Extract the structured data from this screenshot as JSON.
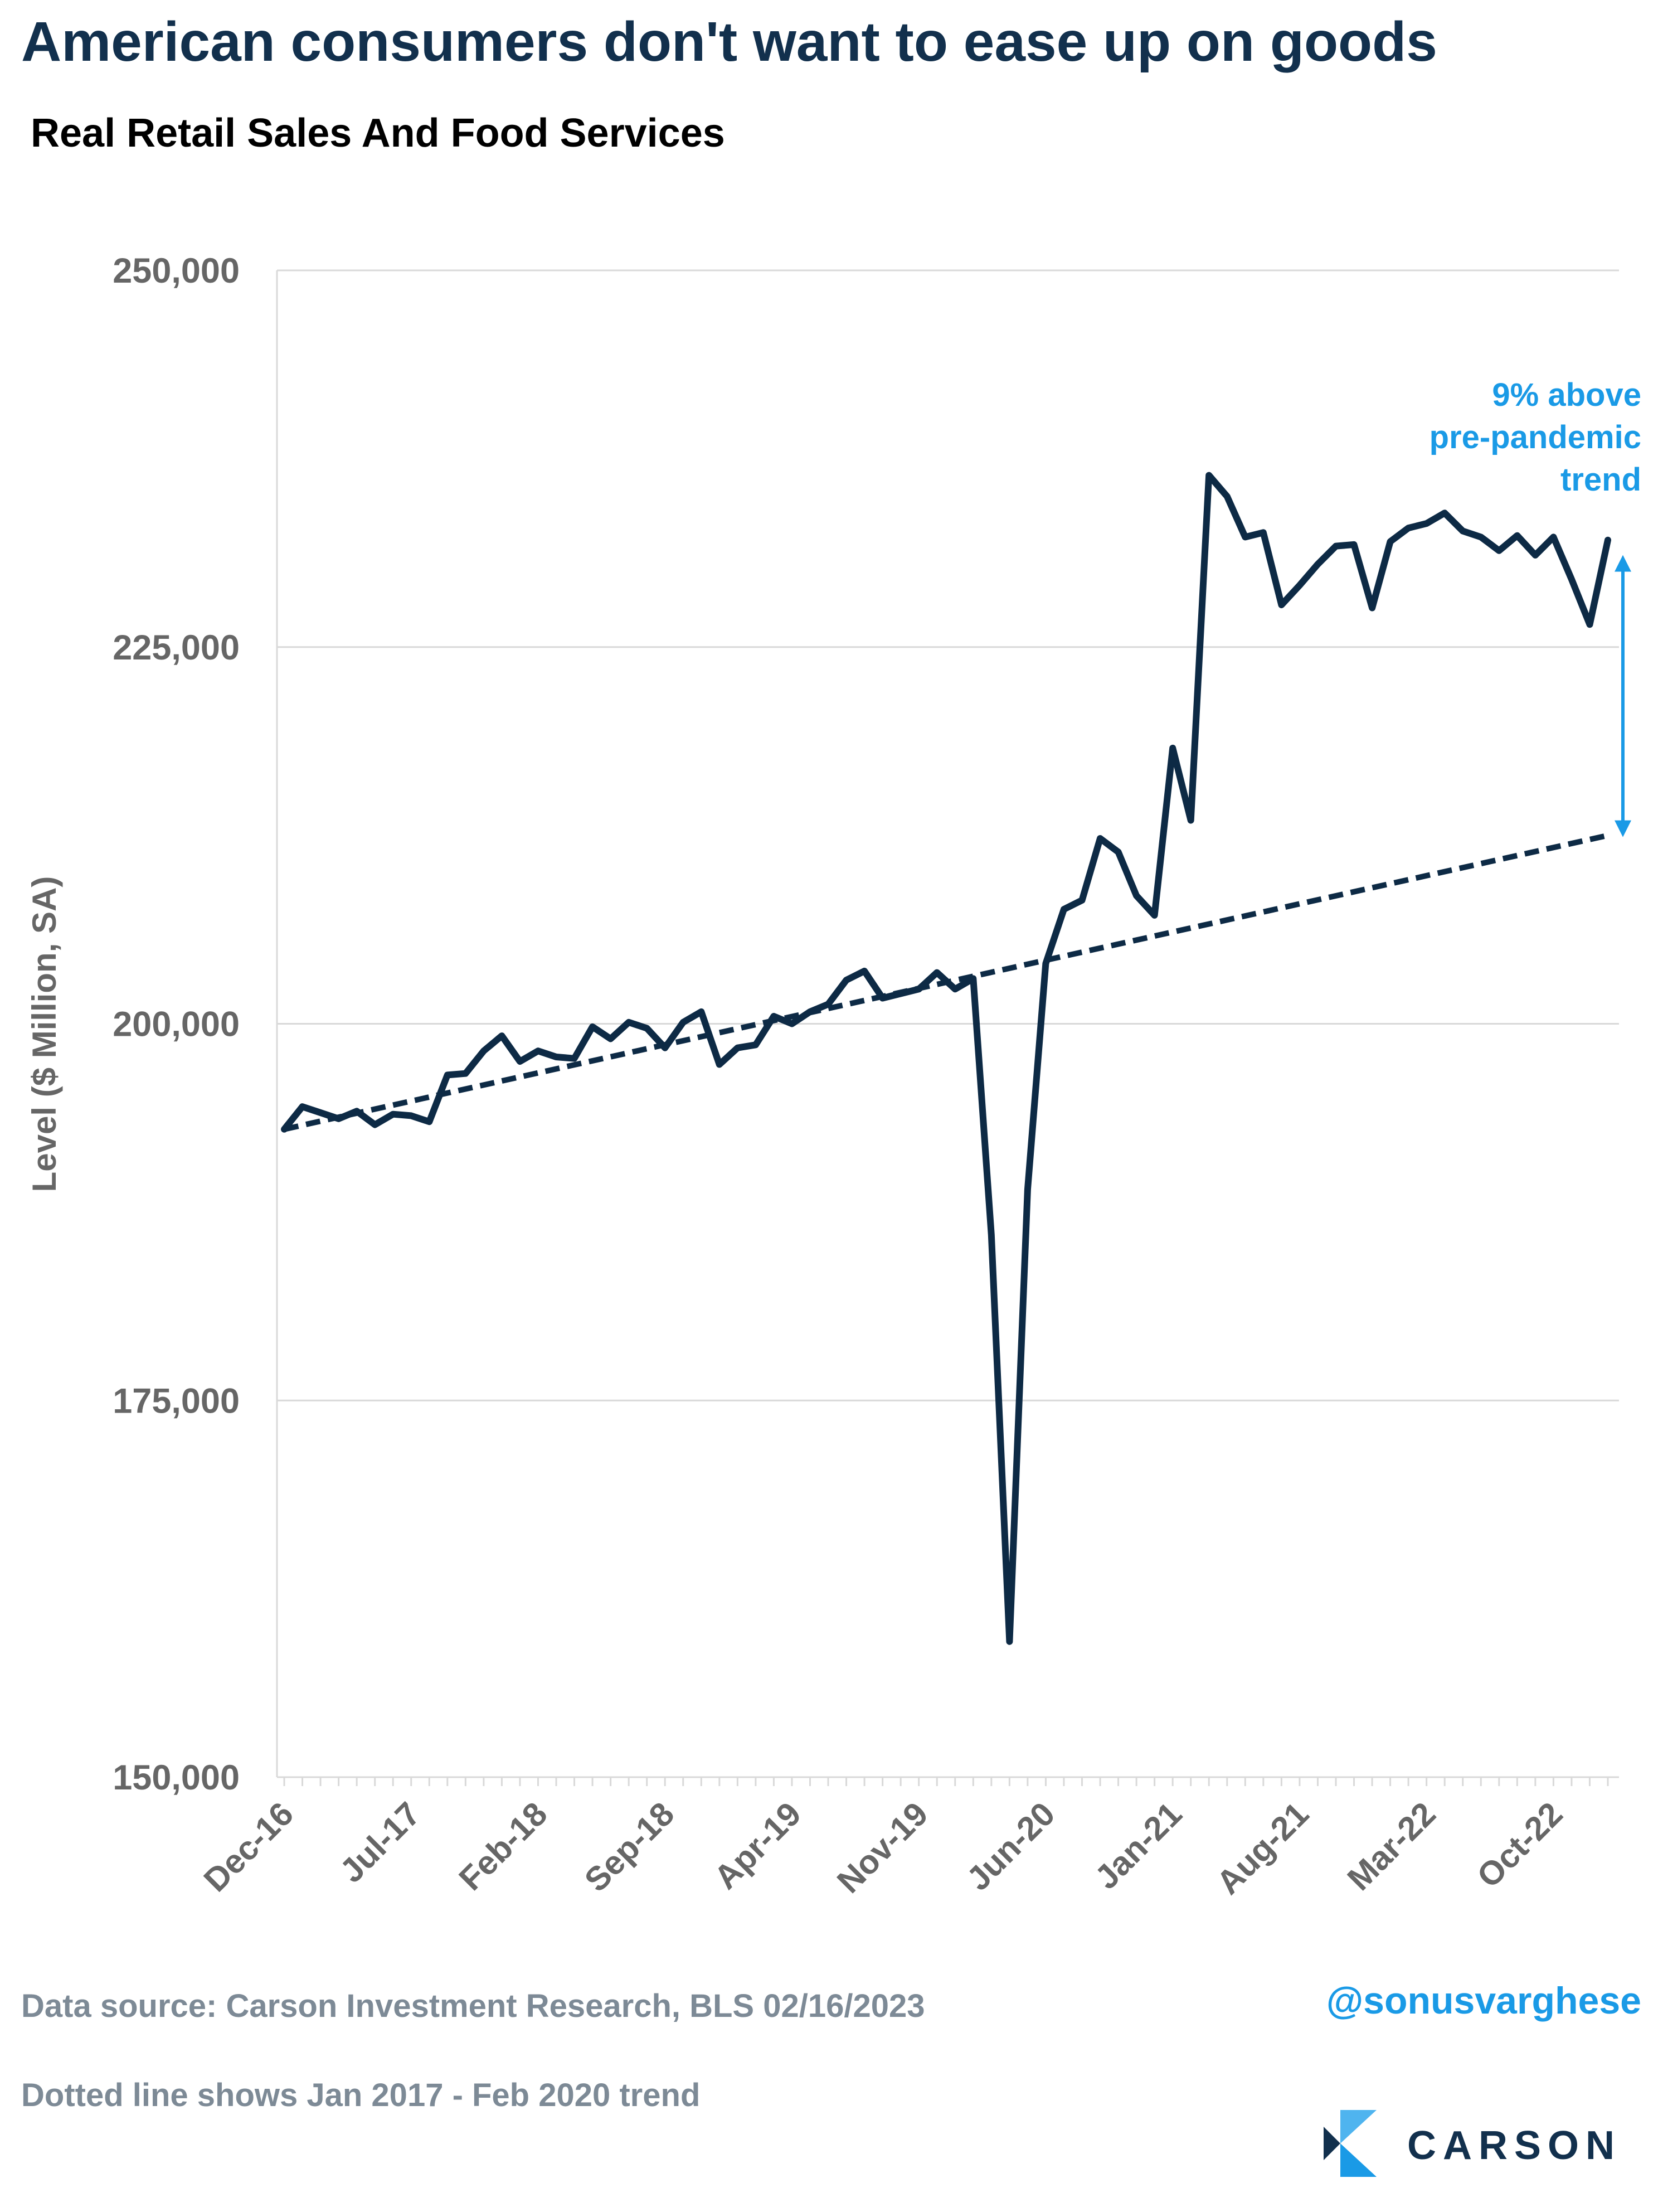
{
  "title": "American consumers don't want to ease up on goods",
  "subtitle": "Real Retail Sales And Food Services",
  "footer": {
    "source": "Data source: Carson Investment Research, BLS   02/16/2023",
    "note": "Dotted line shows Jan 2017 - Feb 2020 trend",
    "handle": "@sonusvarghese",
    "brand": "CARSON"
  },
  "colors": {
    "series": "#0d2a45",
    "annotation": "#1a9ae6",
    "gridline": "#d9d9d9",
    "axis_text": "#666666"
  },
  "chart_data": {
    "type": "line",
    "ylabel": "Level ($ Million, SA)",
    "ylim": [
      150000,
      250000
    ],
    "yticks": [
      150000,
      175000,
      200000,
      225000,
      250000
    ],
    "ytick_labels": [
      "150,000",
      "175,000",
      "200,000",
      "225,000",
      "250,000"
    ],
    "xtick_labels": [
      "Dec-16",
      "Jul-17",
      "Feb-18",
      "Sep-18",
      "Apr-19",
      "Nov-19",
      "Jun-20",
      "Jan-21",
      "Aug-21",
      "Mar-22",
      "Oct-22"
    ],
    "x_start": "Dec-16",
    "x_end": "Jan-23",
    "grid": "horizontal",
    "series": [
      {
        "style": "solid",
        "values": [
          193000,
          194500,
          194100,
          193700,
          194200,
          193300,
          194000,
          193900,
          193500,
          196600,
          196700,
          198200,
          199200,
          197500,
          198200,
          197800,
          197700,
          199800,
          199000,
          200100,
          199700,
          198400,
          200100,
          200800,
          197300,
          198400,
          198600,
          200500,
          200000,
          200800,
          201300,
          202900,
          203500,
          201700,
          202000,
          202300,
          203400,
          202300,
          203000,
          186000,
          159000,
          189000,
          204000,
          207600,
          208200,
          212300,
          211400,
          208500,
          207200,
          218300,
          213500,
          236400,
          235000,
          232300,
          232600,
          227800,
          229100,
          230500,
          231700,
          231800,
          227600,
          232000,
          232900,
          233200,
          233900,
          232700,
          232300,
          231400,
          232400,
          231100,
          232300,
          229500,
          226500,
          232100
        ]
      },
      {
        "style": "dashed",
        "values_at_ends": [
          193000,
          212500
        ]
      }
    ],
    "annotations": [
      {
        "text": [
          "9% above",
          "pre-pandemic",
          "trend"
        ],
        "from": 231000,
        "to": 212500
      }
    ]
  }
}
